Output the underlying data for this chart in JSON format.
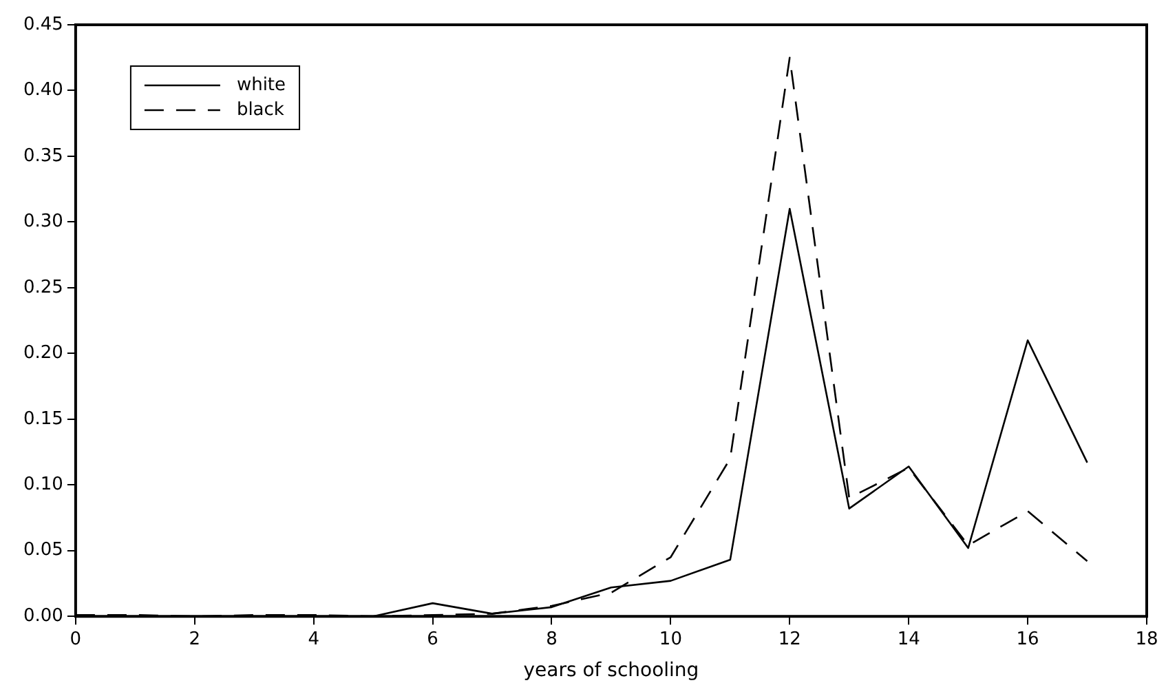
{
  "chart_data": {
    "type": "line",
    "xlabel": "years of schooling",
    "x": [
      0,
      1,
      2,
      3,
      4,
      5,
      6,
      7,
      8,
      9,
      10,
      11,
      12,
      13,
      14,
      15,
      16,
      17
    ],
    "xlim": [
      0,
      18
    ],
    "xticks": [
      0,
      2,
      4,
      6,
      8,
      10,
      12,
      14,
      16,
      18
    ],
    "ylim": [
      0,
      0.45
    ],
    "yticks": [
      {
        "value": 0,
        "label": "0.00"
      },
      {
        "value": 0.05,
        "label": "0.05"
      },
      {
        "value": 0.1,
        "label": "0.10"
      },
      {
        "value": 0.15,
        "label": "0.15"
      },
      {
        "value": 0.2,
        "label": "0.20"
      },
      {
        "value": 0.25,
        "label": "0.25"
      },
      {
        "value": 0.3,
        "label": "0.30"
      },
      {
        "value": 0.35,
        "label": "0.35"
      },
      {
        "value": 0.4,
        "label": "0.40"
      },
      {
        "value": 0.45,
        "label": "0.45"
      }
    ],
    "series": [
      {
        "name": "white",
        "color": "#000000",
        "line_style": "solid",
        "values": [
          0,
          0,
          0,
          0,
          0,
          0,
          0.01,
          0.002,
          0.007,
          0.022,
          0.027,
          0.043,
          0.31,
          0.082,
          0.114,
          0.052,
          0.21,
          0.117
        ]
      },
      {
        "name": "black",
        "color": "#000000",
        "line_style": "dashed",
        "values": [
          0.001,
          0.001,
          0,
          0.001,
          0.001,
          0,
          0.001,
          0.002,
          0.008,
          0.018,
          0.045,
          0.12,
          0.425,
          0.09,
          0.113,
          0.054,
          0.08,
          0.042
        ]
      }
    ],
    "grid": false,
    "legend": "top left",
    "marker": "none"
  }
}
